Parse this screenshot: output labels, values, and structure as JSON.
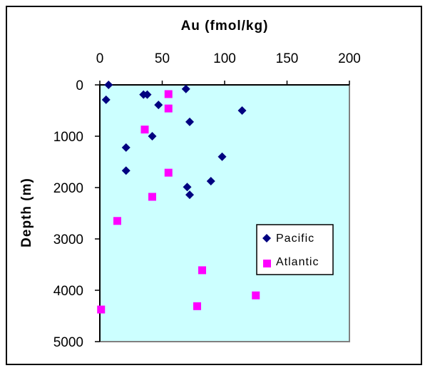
{
  "chart_data": {
    "type": "scatter",
    "title": "",
    "xlabel": "Au (fmol/kg)",
    "ylabel": "Depth (m)",
    "xaxis_position": "top",
    "yaxis_inverted": true,
    "xlim": [
      0,
      200
    ],
    "ylim": [
      0,
      5000
    ],
    "xticks": [
      0,
      50,
      100,
      150,
      200
    ],
    "yticks": [
      0,
      1000,
      2000,
      3000,
      4000,
      5000
    ],
    "xtick_labels": [
      "0",
      "50",
      "100",
      "150",
      "200"
    ],
    "ytick_labels": [
      "0",
      "1000",
      "2000",
      "3000",
      "4000",
      "5000"
    ],
    "grid": false,
    "plot_background": "#CCFFFF",
    "legend_position": "inside-lower-right",
    "series": [
      {
        "name": "Pacific",
        "marker": "diamond",
        "color": "#000080",
        "points": [
          {
            "x": 7,
            "y": 0
          },
          {
            "x": 5,
            "y": 290
          },
          {
            "x": 35,
            "y": 190
          },
          {
            "x": 38,
            "y": 190
          },
          {
            "x": 47,
            "y": 390
          },
          {
            "x": 69,
            "y": 80
          },
          {
            "x": 72,
            "y": 720
          },
          {
            "x": 114,
            "y": 500
          },
          {
            "x": 42,
            "y": 1000
          },
          {
            "x": 21,
            "y": 1220
          },
          {
            "x": 98,
            "y": 1400
          },
          {
            "x": 21,
            "y": 1670
          },
          {
            "x": 89,
            "y": 1875
          },
          {
            "x": 70,
            "y": 1990
          },
          {
            "x": 72,
            "y": 2140
          }
        ]
      },
      {
        "name": "Atlantic",
        "marker": "square",
        "color": "#FF00FF",
        "points": [
          {
            "x": 55,
            "y": 180
          },
          {
            "x": 55,
            "y": 460
          },
          {
            "x": 36,
            "y": 870
          },
          {
            "x": 55,
            "y": 1710
          },
          {
            "x": 42,
            "y": 2180
          },
          {
            "x": 14,
            "y": 2650
          },
          {
            "x": 82,
            "y": 3610
          },
          {
            "x": 125,
            "y": 4100
          },
          {
            "x": 78,
            "y": 4310
          },
          {
            "x": 1,
            "y": 4375
          }
        ]
      }
    ]
  },
  "labels": {
    "x_title": "Au (fmol/kg)",
    "y_title": "Depth (m)",
    "legend_pacific": "Pacific",
    "legend_atlantic": "Atlantic"
  }
}
